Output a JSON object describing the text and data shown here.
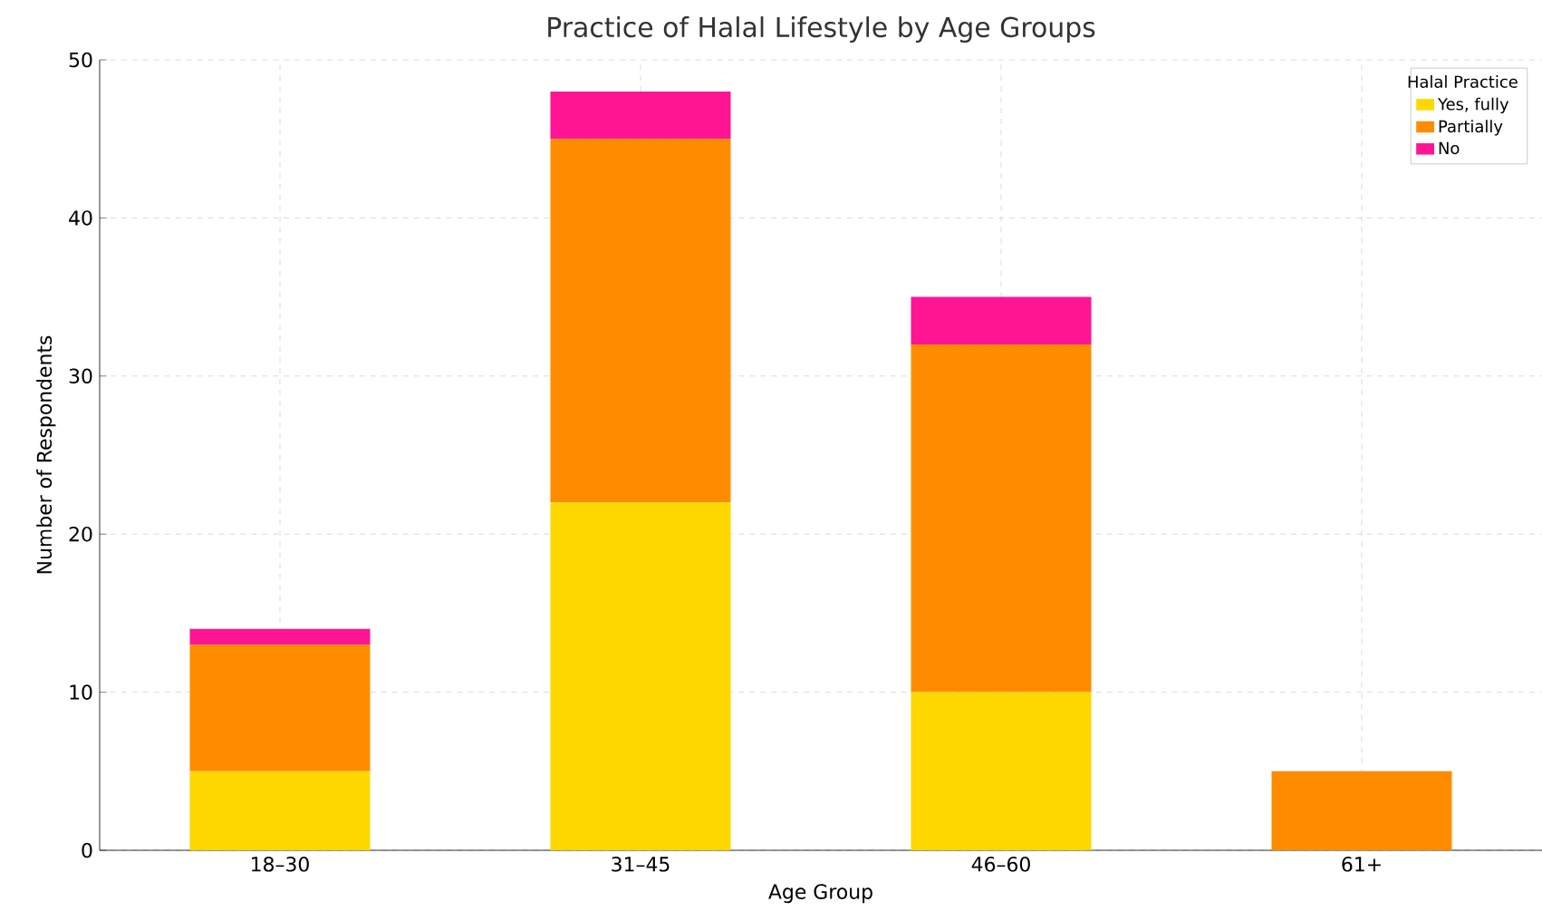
{
  "chart_data": {
    "type": "bar",
    "title": "Practice of Halal Lifestyle by Age Groups",
    "xlabel": "Age Group",
    "ylabel": "Number of Respondents",
    "legend_title": "Halal Practice",
    "categories": [
      "18–30",
      "31–45",
      "46–60",
      "61+"
    ],
    "series": [
      {
        "name": "Yes, fully",
        "color": "#ffd700",
        "values": [
          5,
          22,
          10,
          0
        ]
      },
      {
        "name": "Partially",
        "color": "#ff8c00",
        "values": [
          8,
          23,
          22,
          5
        ]
      },
      {
        "name": "No",
        "color": "#ff1493",
        "values": [
          1,
          3,
          3,
          0
        ]
      }
    ],
    "stacked": true,
    "ylim": [
      0,
      50
    ],
    "yticks": [
      0,
      10,
      20,
      30,
      40,
      50
    ],
    "grid": true,
    "legend": "top right"
  }
}
